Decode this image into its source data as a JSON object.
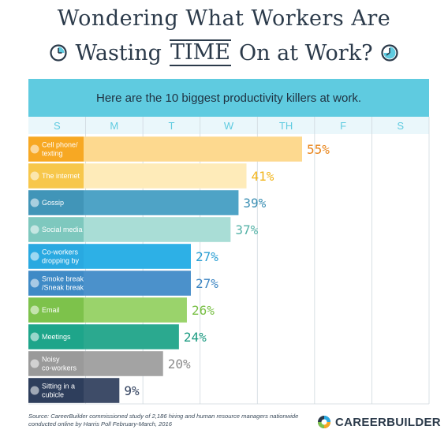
{
  "title_line1": "Wondering What Workers Are",
  "title_line2_pre": "Wasting",
  "title_line2_time": "TIME",
  "title_line2_post": "On at Work?",
  "banner": "Here are the 10 biggest productivity killers at work.",
  "source_line1": "Source: CareerBuilder commissioned study of 2,186 hiring and human resource managers nationwide",
  "source_line2": "conducted online by Harris Poll February-March, 2016",
  "logo_text": "CAREERBUILDER",
  "chart_data": {
    "type": "bar",
    "orientation": "horizontal",
    "day_headers": [
      "S",
      "M",
      "T",
      "W",
      "TH",
      "F",
      "S"
    ],
    "categories": [
      "Cell phone/ texting",
      "The internet",
      "Gossip",
      "Social media",
      "Co-workers dropping by",
      "Smoke breaks /Sneak breaks",
      "Email",
      "Meetings",
      "Noisy co-workers",
      "Sitting in a cubicle"
    ],
    "label_lines": [
      [
        "Cell phone/",
        "texting"
      ],
      [
        "The internet"
      ],
      [
        "Gossip"
      ],
      [
        "Social media"
      ],
      [
        "Co-workers",
        "dropping by"
      ],
      [
        "Smoke breaks",
        "/Sneak breaks"
      ],
      [
        "Email"
      ],
      [
        "Meetings"
      ],
      [
        "Noisy",
        "co-workers"
      ],
      [
        "Sitting in a",
        "cubicle"
      ]
    ],
    "values": [
      55,
      41,
      39,
      37,
      27,
      27,
      26,
      24,
      20,
      9
    ],
    "value_labels": [
      "55%",
      "41%",
      "39%",
      "37%",
      "27%",
      "27%",
      "26%",
      "24%",
      "20%",
      "9%"
    ],
    "label_box_colors": [
      "#f7a823",
      "#f7c74b",
      "#4195b8",
      "#7ec8be",
      "#29a9e1",
      "#3f8ac6",
      "#7dc24b",
      "#1ea58a",
      "#9a9a9a",
      "#2e3e5c"
    ],
    "bar_colors": [
      "#fdd98f",
      "#feebb9",
      "#4ea3c6",
      "#a9ddd6",
      "#2db0e6",
      "#4b91cb",
      "#9ad36b",
      "#2ba98f",
      "#a3a3a3",
      "#3e4c68"
    ],
    "value_label_colors": [
      "#e8841a",
      "#f2b51c",
      "#3d90b4",
      "#55b2a7",
      "#2a9fd3",
      "#3c85c2",
      "#78bf44",
      "#1a9a80",
      "#8a8a8a",
      "#2e3e5c"
    ],
    "xlim": [
      0,
      100
    ]
  }
}
